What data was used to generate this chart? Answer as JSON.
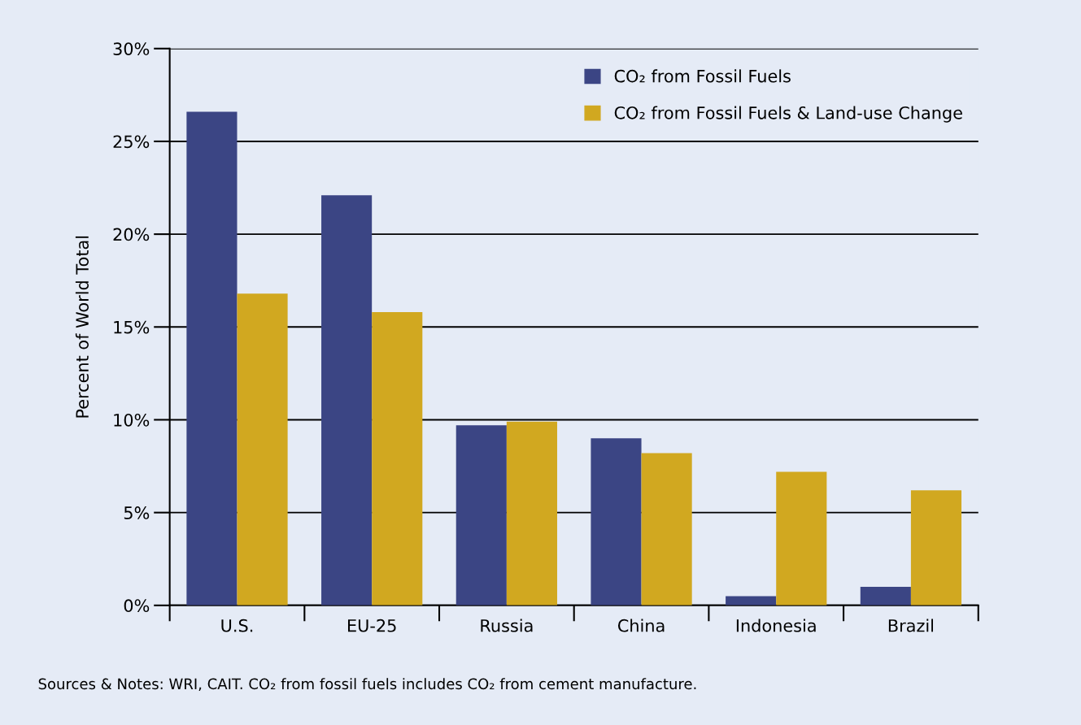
{
  "chart_data": {
    "type": "bar",
    "ylabel": "Percent of World Total",
    "categories": [
      "U.S.",
      "EU-25",
      "Russia",
      "China",
      "Indonesia",
      "Brazil"
    ],
    "series": [
      {
        "name": "CO₂ from Fossil Fuels",
        "color": "#3b4584",
        "values": [
          26.6,
          22.1,
          9.7,
          9.0,
          0.5,
          1.0
        ]
      },
      {
        "name": "CO₂ from Fossil Fuels & Land-use Change",
        "color": "#d1a820",
        "values": [
          16.8,
          15.8,
          9.9,
          8.2,
          7.2,
          6.2
        ]
      }
    ],
    "ylim": [
      0,
      30
    ],
    "yticks": [
      {
        "value": 0,
        "label": "0%"
      },
      {
        "value": 5,
        "label": "5%"
      },
      {
        "value": 10,
        "label": "10%"
      },
      {
        "value": 15,
        "label": "15%"
      },
      {
        "value": 20,
        "label": "20%"
      },
      {
        "value": 25,
        "label": "25%"
      },
      {
        "value": 30,
        "label": "30%"
      }
    ],
    "grid": "y",
    "legend": "top right",
    "annotations": [
      "Sources & Notes: WRI, CAIT. CO₂ from fossil fuels includes CO₂ from cement manufacture."
    ]
  }
}
